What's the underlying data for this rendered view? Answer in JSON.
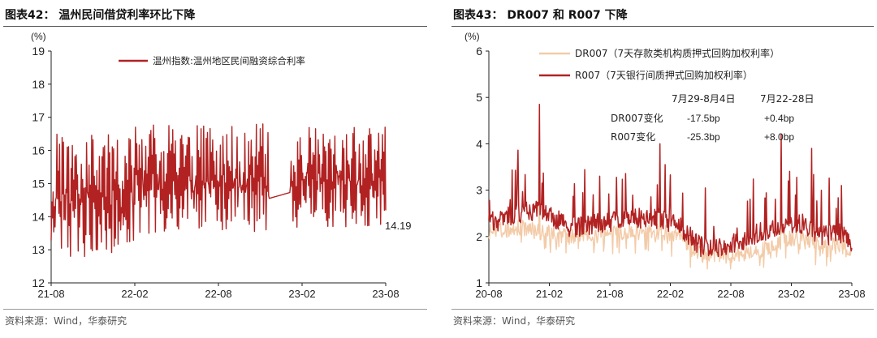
{
  "left_panel": {
    "figure_title": "图表42：  温州民间借贷利率环比下降",
    "source": "资料来源：Wind，华泰研究"
  },
  "right_panel": {
    "figure_title": "图表43：  DR007 和 R007 下降",
    "source": "资料来源：Wind，华泰研究"
  },
  "colors": {
    "dark_red": "#b22222",
    "light_orange": "#f3cba8",
    "axis": "#222222"
  },
  "chart_data": [
    {
      "type": "line",
      "unit": "(%)",
      "ylim": [
        12,
        19
      ],
      "yticks": [
        "12",
        "13",
        "14",
        "15",
        "16",
        "17",
        "18",
        "19"
      ],
      "xlim": [
        "2021-08",
        "2023-08"
      ],
      "xticks": [
        "21-08",
        "22-02",
        "22-08",
        "23-02",
        "23-08"
      ],
      "legend_position": "top-center",
      "series": [
        {
          "name": "温州指数:温州地区民间融资综合利率",
          "color": "#b22222",
          "last_value": 14.19,
          "approx_band": {
            "2021-08_to_2022-01": [
              12.4,
              16.5
            ],
            "2022-02_to_2022-12": [
              13.1,
              16.8
            ],
            "2023-01_to_2023-08": [
              13.3,
              16.7
            ]
          }
        }
      ],
      "annotations": [
        "14.19"
      ]
    },
    {
      "type": "line",
      "unit": "(%)",
      "ylim": [
        1,
        6
      ],
      "yticks": [
        "1",
        "2",
        "3",
        "4",
        "5",
        "6"
      ],
      "xlim": [
        "2020-08",
        "2023-08"
      ],
      "xticks": [
        "20-08",
        "21-02",
        "21-08",
        "22-02",
        "22-08",
        "23-02",
        "23-08"
      ],
      "legend_position": "top-left",
      "series": [
        {
          "name": "DR007（7天存款类机构质押式回购加权利率）",
          "color": "#f3cba8",
          "points": [
            [
              "2020-08",
              2.1
            ],
            [
              "2020-11",
              2.2
            ],
            [
              "2021-01",
              2.1
            ],
            [
              "2021-04",
              2.0
            ],
            [
              "2021-07",
              2.1
            ],
            [
              "2021-10",
              2.1
            ],
            [
              "2022-01",
              2.1
            ],
            [
              "2022-03",
              2.0
            ],
            [
              "2022-05",
              1.6
            ],
            [
              "2022-07",
              1.6
            ],
            [
              "2022-09",
              1.6
            ],
            [
              "2022-11",
              1.7
            ],
            [
              "2023-01",
              1.9
            ],
            [
              "2023-03",
              2.0
            ],
            [
              "2023-05",
              1.8
            ],
            [
              "2023-07",
              1.8
            ],
            [
              "2023-08",
              1.7
            ]
          ]
        },
        {
          "name": "R007（7天银行间质押式回购加权利率）",
          "color": "#b22222",
          "points": [
            [
              "2020-08",
              2.2
            ],
            [
              "2020-11",
              2.4
            ],
            [
              "2021-01",
              2.5
            ],
            [
              "2021-04",
              2.1
            ],
            [
              "2021-07",
              2.2
            ],
            [
              "2021-10",
              2.3
            ],
            [
              "2022-01",
              2.3
            ],
            [
              "2022-03",
              2.1
            ],
            [
              "2022-05",
              1.7
            ],
            [
              "2022-07",
              1.7
            ],
            [
              "2022-09",
              1.8
            ],
            [
              "2022-11",
              2.0
            ],
            [
              "2023-01",
              2.1
            ],
            [
              "2023-03",
              2.2
            ],
            [
              "2023-05",
              1.9
            ],
            [
              "2023-07",
              2.0
            ],
            [
              "2023-08",
              1.8
            ]
          ],
          "spikes": [
            [
              "2020-12-31",
              4.85
            ],
            [
              "2021-06-30",
              3.3
            ],
            [
              "2021-12-31",
              4.0
            ],
            [
              "2022-12-31",
              4.2
            ],
            [
              "2023-03-31",
              3.9
            ],
            [
              "2023-06-30",
              3.1
            ]
          ]
        }
      ],
      "annotation_table": {
        "headers": [
          "7月29-8月4日",
          "7月22-28日"
        ],
        "rows": [
          {
            "label": "DR007变化",
            "values": [
              "-17.5bp",
              "+0.4bp"
            ]
          },
          {
            "label": "R007变化",
            "values": [
              "-25.3bp",
              "+8.0bp"
            ]
          }
        ]
      }
    }
  ]
}
